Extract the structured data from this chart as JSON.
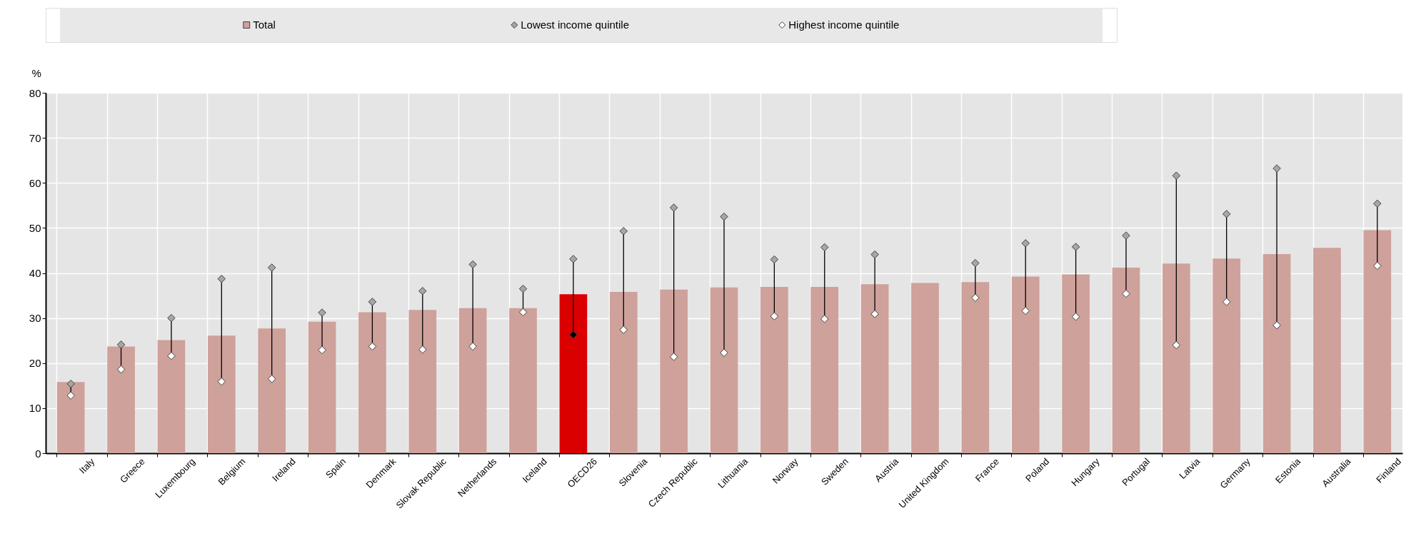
{
  "chart_data": {
    "type": "bar",
    "ylabel": "%",
    "categories": [
      "Italy",
      "Greece",
      "Luxembourg",
      "Belgium",
      "Ireland",
      "Spain",
      "Denmark",
      "Slovak Republic",
      "Netherlands",
      "Iceland",
      "OECD26",
      "Slovenia",
      "Czech Republic",
      "Lithuania",
      "Norway",
      "Sweden",
      "Austria",
      "United Kingdom",
      "France",
      "Poland",
      "Hungary",
      "Portugal",
      "Latvia",
      "Germany",
      "Estonia",
      "Australia",
      "Finland"
    ],
    "series": [
      {
        "name": "Total",
        "color": "#cfa19b",
        "colors": [
          "#cfa19b",
          "#cfa19b",
          "#cfa19b",
          "#cfa19b",
          "#cfa19b",
          "#cfa19b",
          "#cfa19b",
          "#cfa19b",
          "#cfa19b",
          "#cfa19b",
          "#da0000",
          "#cfa19b",
          "#cfa19b",
          "#cfa19b",
          "#cfa19b",
          "#cfa19b",
          "#cfa19b",
          "#cfa19b",
          "#cfa19b",
          "#cfa19b",
          "#cfa19b",
          "#cfa19b",
          "#cfa19b",
          "#cfa19b",
          "#cfa19b",
          "#cfa19b",
          "#cfa19b"
        ],
        "values": [
          15.8,
          23.7,
          25.1,
          26.1,
          27.7,
          29.2,
          31.3,
          31.8,
          32.2,
          32.2,
          35.3,
          35.8,
          36.3,
          36.8,
          36.9,
          36.9,
          37.5,
          37.8,
          38.0,
          39.2,
          39.7,
          41.2,
          42.1,
          43.2,
          44.2,
          45.6,
          49.5
        ]
      },
      {
        "name": "Lowest income quintile",
        "type": "scatter",
        "color": "#a6a6a6",
        "values": [
          15.4,
          24.1,
          30.0,
          38.7,
          41.2,
          31.2,
          33.6,
          36.0,
          41.9,
          36.5,
          43.1,
          49.3,
          54.5,
          52.5,
          43.0,
          45.7,
          44.1,
          null,
          42.2,
          46.6,
          45.8,
          48.3,
          61.6,
          53.1,
          63.2,
          null,
          55.4
        ]
      },
      {
        "name": "Highest income quintile",
        "type": "scatter",
        "color": "#ffffff",
        "colors": [
          "#ffffff",
          "#ffffff",
          "#ffffff",
          "#ffffff",
          "#ffffff",
          "#ffffff",
          "#ffffff",
          "#ffffff",
          "#ffffff",
          "#ffffff",
          "#000000",
          "#ffffff",
          "#ffffff",
          "#ffffff",
          "#ffffff",
          "#ffffff",
          "#ffffff",
          "#ffffff",
          "#ffffff",
          "#ffffff",
          "#ffffff",
          "#ffffff",
          "#ffffff",
          "#ffffff",
          "#ffffff",
          "#ffffff",
          "#ffffff"
        ],
        "values": [
          12.8,
          18.6,
          21.6,
          15.9,
          16.5,
          22.9,
          23.7,
          23.0,
          23.7,
          31.3,
          26.3,
          27.4,
          21.4,
          22.3,
          30.4,
          29.8,
          30.9,
          null,
          34.5,
          31.6,
          30.3,
          35.4,
          24.0,
          33.6,
          28.4,
          null,
          41.6
        ]
      }
    ],
    "ylim": [
      0,
      80
    ],
    "yticks": [
      0,
      10,
      20,
      30,
      40,
      50,
      60,
      70,
      80
    ],
    "grid": true,
    "legend": "top",
    "marker": "diamond"
  }
}
